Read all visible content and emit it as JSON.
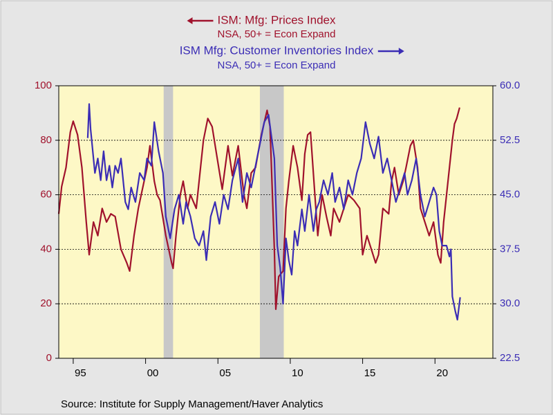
{
  "chart_data": {
    "type": "line",
    "titles": [
      {
        "text": "ISM: Mfg: Prices Index",
        "subtitle": "NSA, 50+ = Econ Expand"
      },
      {
        "text": "ISM Mfg: Customer Inventories Index",
        "subtitle": "NSA, 50+ = Econ Expand"
      }
    ],
    "source": "Source:  Institute for Supply Management/Haver Analytics",
    "xlim": [
      1994,
      2024
    ],
    "xticks": [
      {
        "value": 1995,
        "label": "95"
      },
      {
        "value": 2000,
        "label": "00"
      },
      {
        "value": 2005,
        "label": "05"
      },
      {
        "value": 2010,
        "label": "10"
      },
      {
        "value": 2015,
        "label": "15"
      },
      {
        "value": 2020,
        "label": "20"
      }
    ],
    "ylim": [
      0,
      100
    ],
    "yticks": [
      0,
      20,
      40,
      60,
      80,
      100
    ],
    "y2lim": [
      22.5,
      60
    ],
    "y2ticks": [
      22.5,
      {
        "value": 30,
        "label": "30.0"
      },
      37.5,
      {
        "value": 45,
        "label": "45.0"
      },
      52.5,
      {
        "value": 60,
        "label": "60.0"
      }
    ],
    "grid": true,
    "recessions": [
      [
        2001.25,
        2001.9
      ],
      [
        2007.9,
        2009.55
      ]
    ],
    "series": [
      {
        "name": "ISM: Mfg: Prices Index",
        "color": "#a0122c",
        "axis": "y",
        "x": [
          1994.0,
          1994.2,
          1994.5,
          1994.8,
          1995.0,
          1995.3,
          1995.6,
          1995.9,
          1996.1,
          1996.4,
          1996.7,
          1997.0,
          1997.3,
          1997.6,
          1997.9,
          1998.3,
          1998.7,
          1998.9,
          1999.2,
          1999.5,
          1999.9,
          2000.1,
          2000.3,
          2000.6,
          2000.8,
          2001.0,
          2001.4,
          2001.8,
          2001.9,
          2002.1,
          2002.4,
          2002.6,
          2002.9,
          2003.1,
          2003.5,
          2003.8,
          2004.0,
          2004.3,
          2004.6,
          2004.9,
          2005.3,
          2005.7,
          2006.0,
          2006.4,
          2006.8,
          2007.0,
          2007.3,
          2007.6,
          2008.0,
          2008.4,
          2008.6,
          2008.9,
          2009.0,
          2009.2,
          2009.5,
          2009.7,
          2009.9,
          2010.2,
          2010.5,
          2010.8,
          2011.0,
          2011.2,
          2011.4,
          2011.7,
          2011.9,
          2012.2,
          2012.5,
          2012.8,
          2013.0,
          2013.4,
          2013.7,
          2014.0,
          2014.4,
          2014.8,
          2015.0,
          2015.3,
          2015.6,
          2015.9,
          2016.1,
          2016.4,
          2016.8,
          2017.0,
          2017.2,
          2017.5,
          2017.8,
          2018.0,
          2018.3,
          2018.5,
          2018.8,
          2019.0,
          2019.3,
          2019.6,
          2019.9,
          2020.2,
          2020.4,
          2020.6,
          2020.8,
          2020.9,
          2021.2,
          2021.35,
          2021.5,
          2021.7
        ],
        "values": [
          53,
          63,
          70,
          83,
          87,
          82,
          70,
          50,
          38,
          50,
          45,
          55,
          50,
          53,
          52,
          40,
          35,
          32,
          45,
          55,
          65,
          70,
          78,
          65,
          60,
          58,
          45,
          35,
          33,
          45,
          60,
          65,
          55,
          60,
          55,
          70,
          80,
          88,
          85,
          75,
          62,
          78,
          67,
          78,
          60,
          55,
          68,
          70,
          82,
          91,
          85,
          40,
          18,
          30,
          32,
          55,
          65,
          78,
          70,
          58,
          75,
          82,
          83,
          60,
          45,
          60,
          52,
          45,
          55,
          50,
          55,
          60,
          58,
          55,
          38,
          45,
          40,
          35,
          38,
          55,
          53,
          65,
          70,
          60,
          65,
          70,
          78,
          80,
          70,
          55,
          50,
          45,
          50,
          38,
          35,
          50,
          60,
          65,
          80,
          86,
          88,
          92
        ]
      },
      {
        "name": "ISM Mfg: Customer Inventories Index",
        "color": "#3b2db5",
        "axis": "y2",
        "x": [
          1996.0,
          1996.1,
          1996.2,
          1996.5,
          1996.7,
          1996.9,
          1997.1,
          1997.3,
          1997.5,
          1997.7,
          1997.9,
          1998.1,
          1998.3,
          1998.6,
          1998.8,
          1999.0,
          1999.3,
          1999.6,
          1999.9,
          2000.1,
          2000.4,
          2000.6,
          2000.9,
          2001.2,
          2001.4,
          2001.7,
          2002.0,
          2002.3,
          2002.6,
          2002.8,
          2003.1,
          2003.4,
          2003.7,
          2004.0,
          2004.2,
          2004.5,
          2004.8,
          2005.1,
          2005.4,
          2005.7,
          2006.0,
          2006.4,
          2006.7,
          2007.0,
          2007.3,
          2007.6,
          2007.9,
          2008.2,
          2008.5,
          2008.7,
          2008.9,
          2009.1,
          2009.3,
          2009.5,
          2009.7,
          2009.9,
          2010.1,
          2010.3,
          2010.5,
          2010.8,
          2011.0,
          2011.3,
          2011.6,
          2011.8,
          2012.0,
          2012.3,
          2012.6,
          2012.9,
          2013.1,
          2013.4,
          2013.7,
          2014.0,
          2014.3,
          2014.6,
          2014.9,
          2015.2,
          2015.5,
          2015.8,
          2016.1,
          2016.4,
          2016.7,
          2017.0,
          2017.3,
          2017.6,
          2017.9,
          2018.1,
          2018.4,
          2018.7,
          2019.0,
          2019.3,
          2019.6,
          2019.9,
          2020.1,
          2020.3,
          2020.5,
          2020.8,
          2021.0,
          2021.1,
          2021.2,
          2021.4,
          2021.55,
          2021.74
        ],
        "values": [
          52.8,
          57.5,
          54,
          48,
          50,
          47,
          51,
          47,
          49,
          46,
          49,
          48,
          50,
          44,
          43,
          46,
          44,
          48,
          47,
          50,
          49,
          55,
          51,
          48,
          42,
          39,
          43,
          45,
          41,
          44,
          42,
          39,
          38,
          40,
          36,
          42,
          44,
          41,
          45,
          43,
          47,
          50,
          44,
          48,
          46,
          49,
          52,
          55,
          56,
          53,
          50,
          38,
          35,
          30,
          39,
          36,
          34,
          40,
          38,
          43,
          40,
          45,
          40,
          43,
          44,
          47,
          45,
          48,
          44,
          46,
          43,
          47,
          45,
          48,
          50,
          55,
          52,
          50,
          53,
          48,
          50,
          47,
          44,
          46,
          48,
          45,
          47,
          50,
          45,
          42,
          44,
          46,
          45,
          40,
          38,
          38,
          36.5,
          37.5,
          31,
          29,
          27.8,
          30.9
        ]
      }
    ]
  }
}
